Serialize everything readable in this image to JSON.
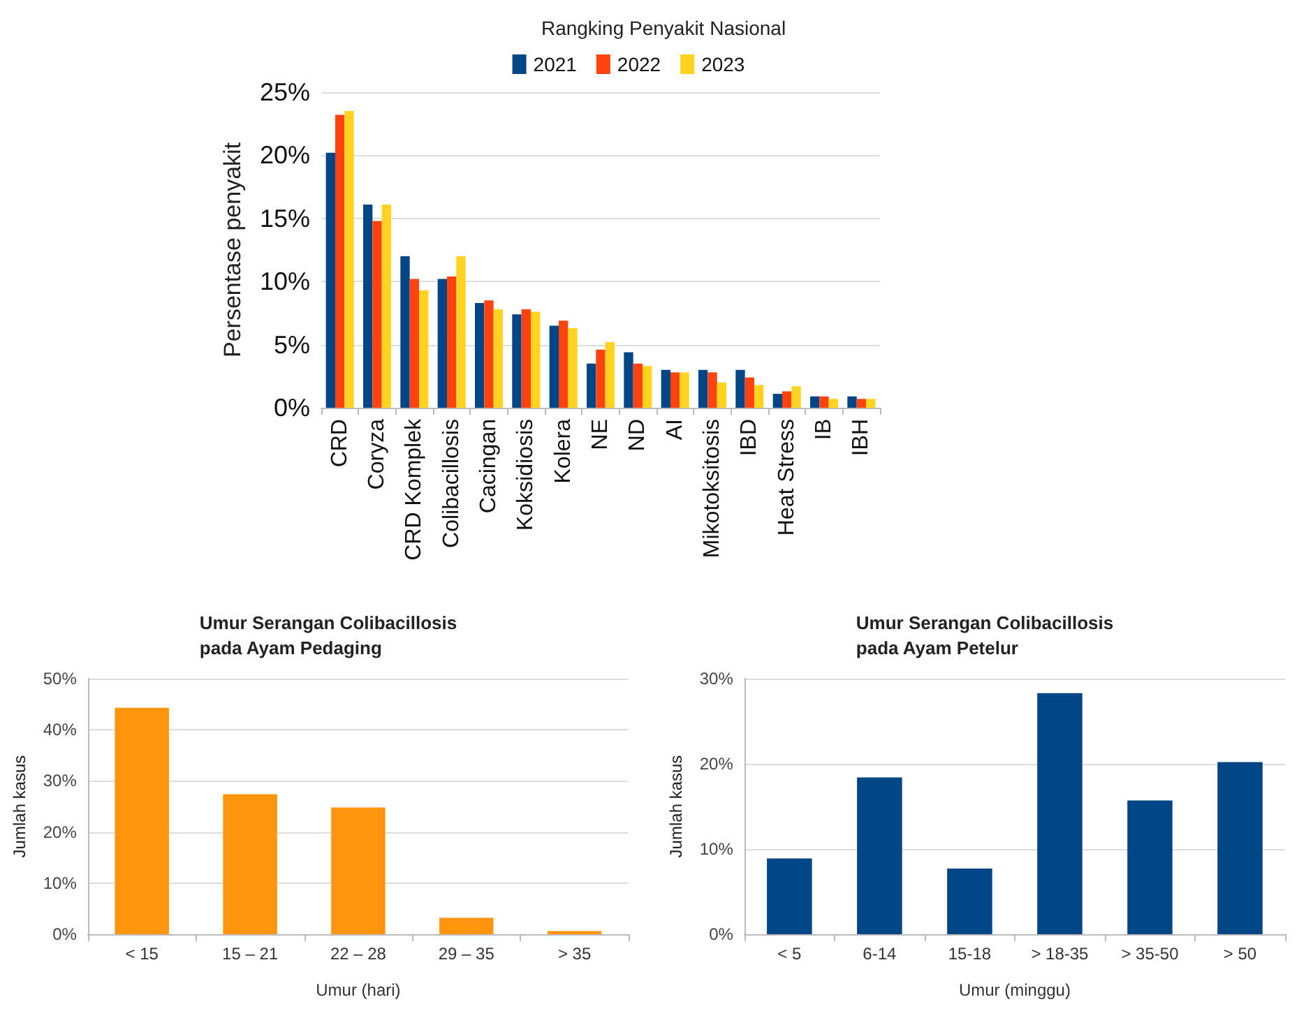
{
  "chart_data": [
    {
      "type": "bar",
      "title": "Rangking Penyakit Nasional",
      "ylabel": "Persentase penyakit",
      "categories": [
        "CRD",
        "Coryza",
        "CRD Komplek",
        "Colibacillosis",
        "Cacingan",
        "Koksidiosis",
        "Kolera",
        "NE",
        "ND",
        "AI",
        "Mikotoksitosis",
        "IBD",
        "Heat Stress",
        "IB",
        "IBH"
      ],
      "series": [
        {
          "name": "2021",
          "color": "#004586",
          "values": [
            20.2,
            16.1,
            12.0,
            10.2,
            8.3,
            7.4,
            6.5,
            3.5,
            4.4,
            3.0,
            3.0,
            3.0,
            1.1,
            0.9,
            0.9
          ]
        },
        {
          "name": "2022",
          "color": "#ff420e",
          "values": [
            23.2,
            14.8,
            10.2,
            10.4,
            8.5,
            7.8,
            6.9,
            4.6,
            3.5,
            2.8,
            2.8,
            2.4,
            1.3,
            0.9,
            0.7
          ]
        },
        {
          "name": "2023",
          "color": "#ffd320",
          "values": [
            23.5,
            16.1,
            9.3,
            12.0,
            7.8,
            7.6,
            6.3,
            5.2,
            3.3,
            2.8,
            2.0,
            1.8,
            1.7,
            0.7,
            0.7
          ]
        }
      ],
      "ylim": [
        0,
        25
      ],
      "yticks": [
        {
          "value": 0,
          "label": "0%"
        },
        {
          "value": 5,
          "label": "5%"
        },
        {
          "value": 10,
          "label": "10%"
        },
        {
          "value": 15,
          "label": "15%"
        },
        {
          "value": 20,
          "label": "20%"
        },
        {
          "value": 25,
          "label": "25%"
        }
      ],
      "grid": "y",
      "legend": "top"
    },
    {
      "type": "bar",
      "title": "Umur Serangan Colibacillosis\npada Ayam Pedaging",
      "xlabel": "Umur (hari)",
      "ylabel": "Jumlah kasus",
      "categories": [
        "< 15",
        "15 – 21",
        "22 – 28",
        "29 – 35",
        "> 35"
      ],
      "series": [
        {
          "color": "#ff950e",
          "values": [
            44.3,
            27.4,
            24.8,
            3.2,
            0.6
          ]
        }
      ],
      "ylim": [
        0,
        50
      ],
      "yticks": [
        {
          "value": 0,
          "label": "0%"
        },
        {
          "value": 10,
          "label": "10%"
        },
        {
          "value": 20,
          "label": "20%"
        },
        {
          "value": 30,
          "label": "30%"
        },
        {
          "value": 40,
          "label": "40%"
        },
        {
          "value": 50,
          "label": "50%"
        }
      ],
      "grid": "y",
      "legend": false
    },
    {
      "type": "bar",
      "title": "Umur Serangan Colibacillosis\npada Ayam Petelur",
      "xlabel": "Umur (minggu)",
      "ylabel": "Jumlah kasus",
      "categories": [
        "< 5",
        "6-14",
        "15-18",
        "> 18-35",
        "> 35-50",
        "> 50"
      ],
      "series": [
        {
          "color": "#004586",
          "values": [
            8.9,
            18.4,
            7.7,
            28.3,
            15.7,
            20.2
          ]
        }
      ],
      "ylim": [
        0,
        30
      ],
      "yticks": [
        {
          "value": 0,
          "label": "0%"
        },
        {
          "value": 10,
          "label": "10%"
        },
        {
          "value": 20,
          "label": "20%"
        },
        {
          "value": 30,
          "label": "30%"
        }
      ],
      "grid": "y",
      "legend": false
    }
  ]
}
